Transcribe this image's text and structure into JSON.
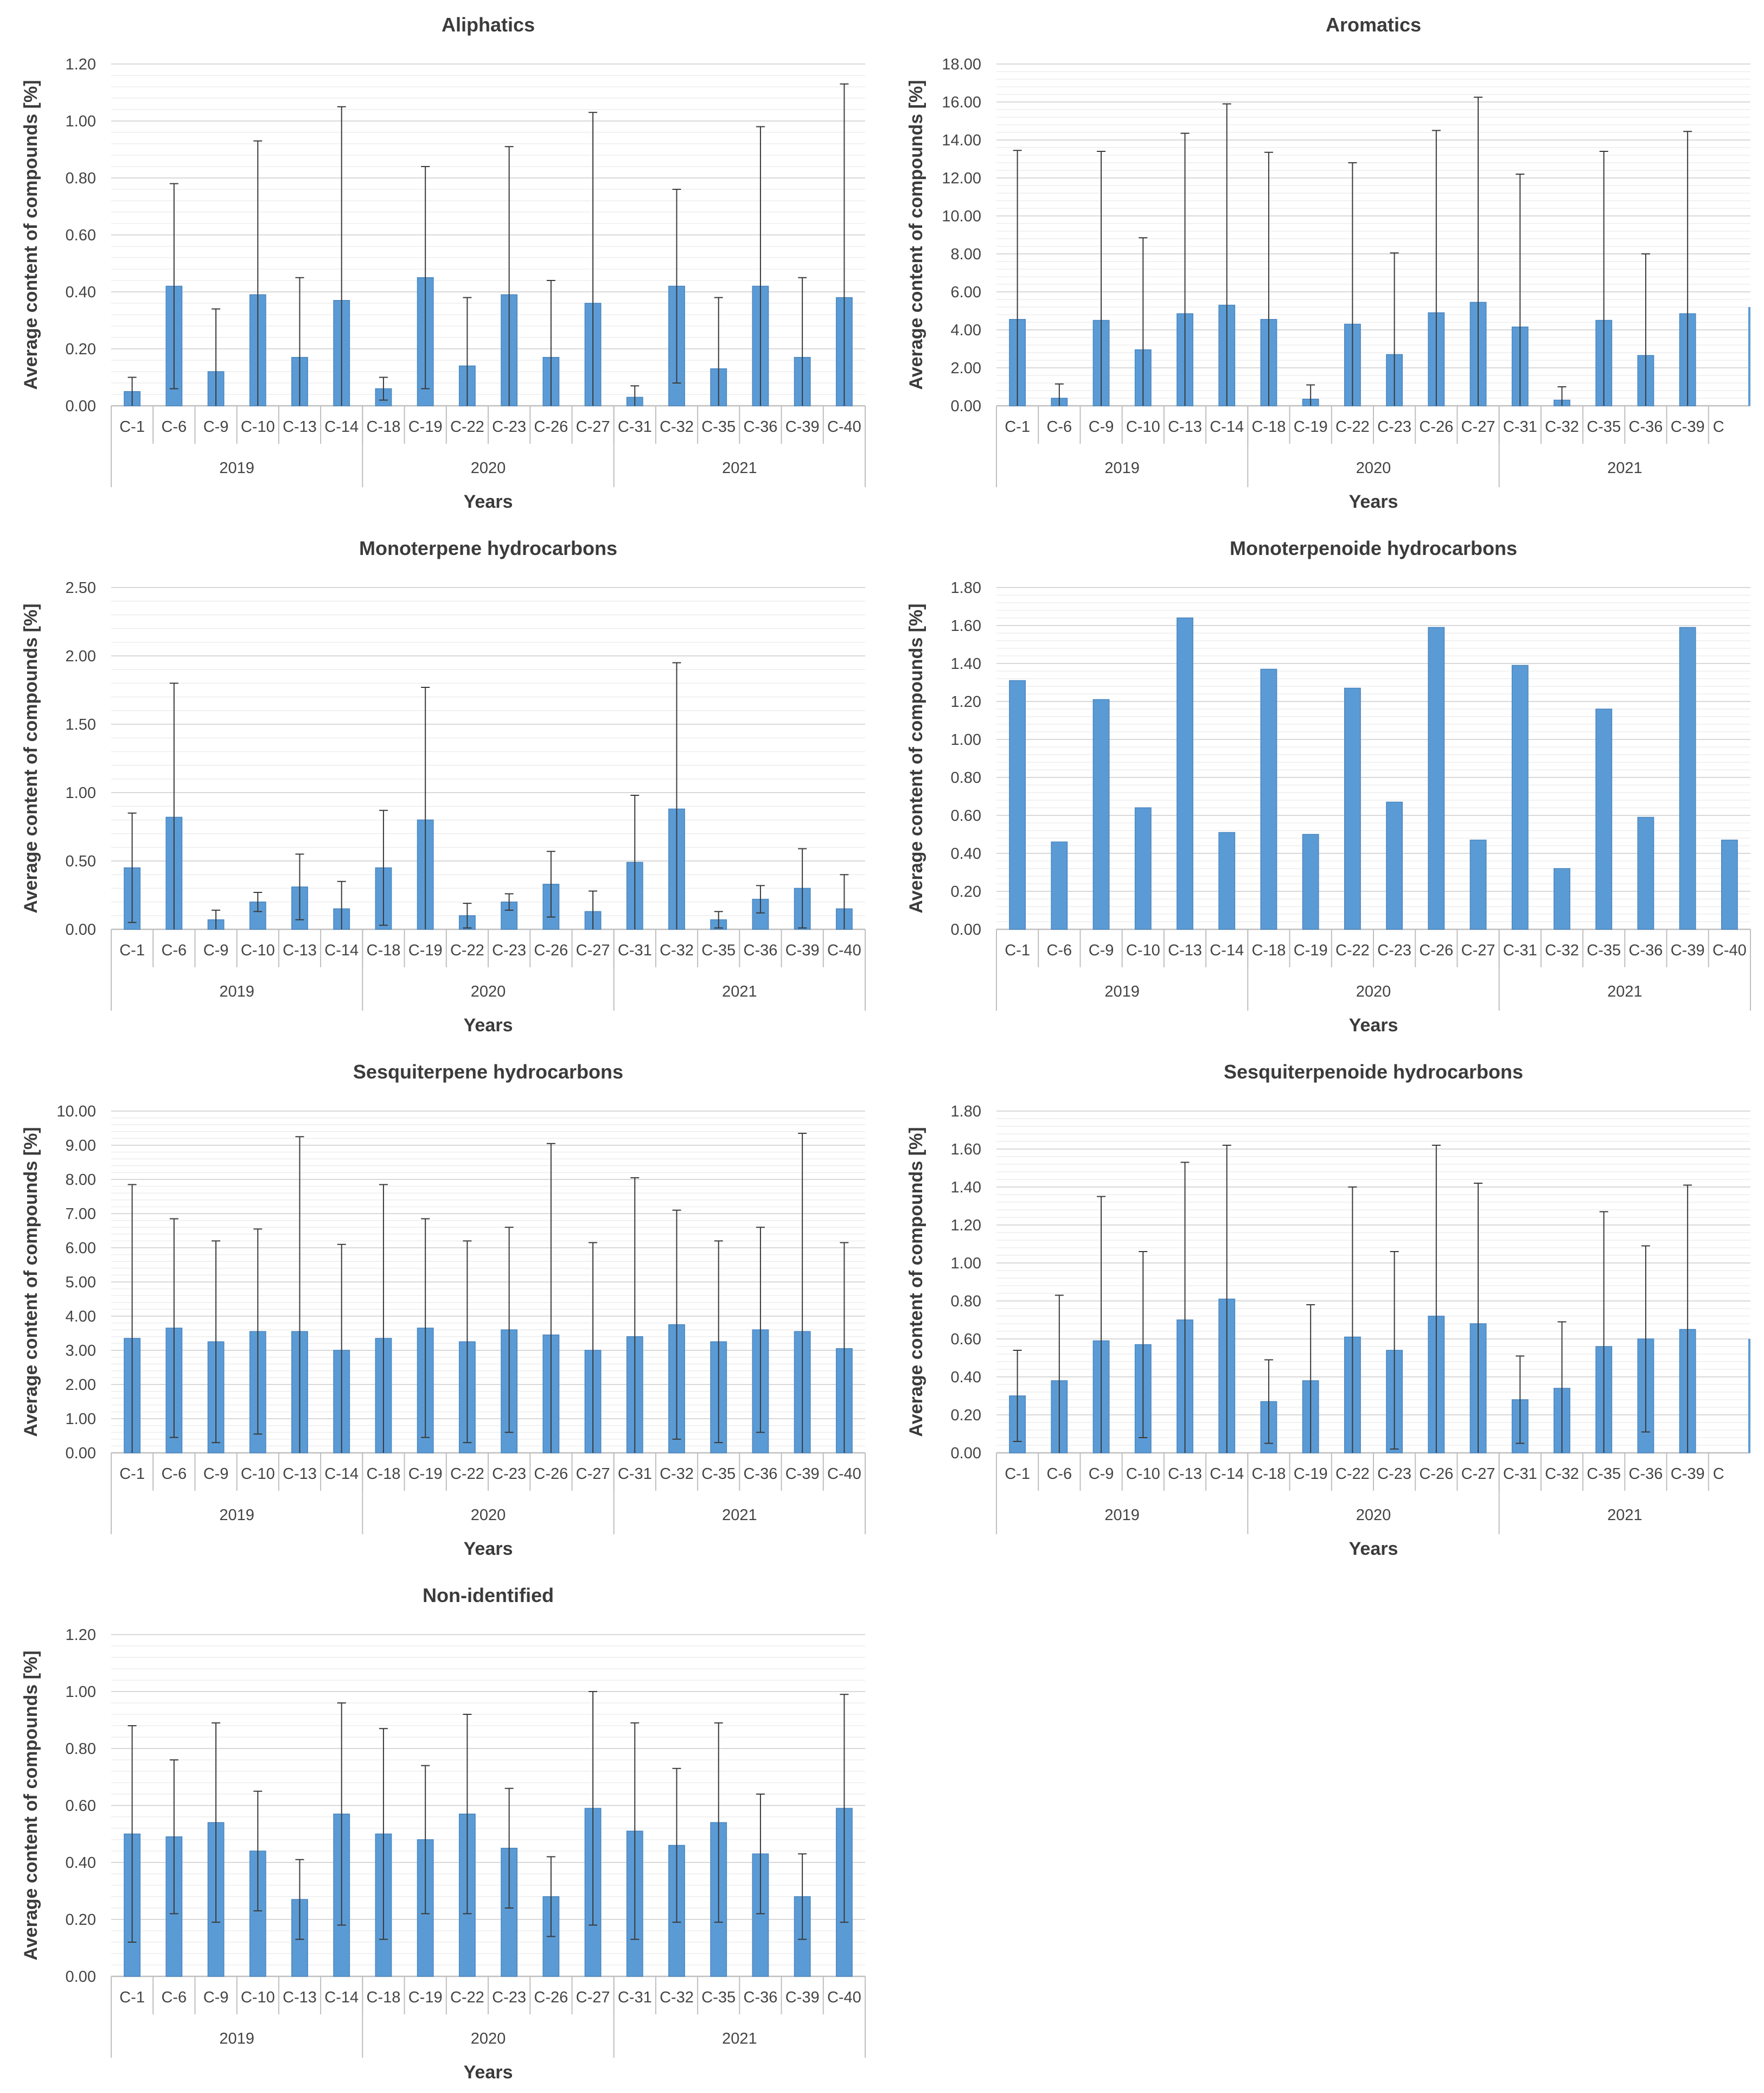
{
  "colors": {
    "bar": "#5b9bd5",
    "bar_edge": "#4a86bf",
    "error": "#3a3a3a",
    "grid": "#d9d9d9",
    "axis": "#bfbfbf"
  },
  "chart_data": [
    {
      "type": "bar",
      "title": "Aliphatics",
      "xlabel": "Years",
      "ylabel": "Average content of compounds  [%]",
      "ylim": [
        0,
        1.2
      ],
      "yticks": [
        "0.00",
        "0.20",
        "0.40",
        "0.60",
        "0.80",
        "1.00",
        "1.20"
      ],
      "categories": [
        "C-1",
        "C-6",
        "C-9",
        "C-10",
        "C-13",
        "C-14",
        "C-18",
        "C-19",
        "C-22",
        "C-23",
        "C-26",
        "C-27",
        "C-31",
        "C-32",
        "C-35",
        "C-36",
        "C-39",
        "C-40"
      ],
      "groups": [
        {
          "label": "2019",
          "count": 6
        },
        {
          "label": "2020",
          "count": 6
        },
        {
          "label": "2021",
          "count": 6
        }
      ],
      "values": [
        0.05,
        0.42,
        0.12,
        0.39,
        0.17,
        0.37,
        0.06,
        0.45,
        0.14,
        0.39,
        0.17,
        0.36,
        0.03,
        0.42,
        0.13,
        0.42,
        0.17,
        0.38
      ],
      "errors": [
        0.05,
        0.36,
        0.22,
        0.54,
        0.28,
        0.68,
        0.04,
        0.39,
        0.24,
        0.52,
        0.27,
        0.67,
        0.04,
        0.34,
        0.25,
        0.56,
        0.28,
        0.75
      ],
      "visible_count": 18
    },
    {
      "type": "bar",
      "title": "Aromatics",
      "xlabel": "Years",
      "ylabel": "Average content of compounds  [%]",
      "ylim": [
        0,
        18
      ],
      "yticks": [
        "0.00",
        "2.00",
        "4.00",
        "6.00",
        "8.00",
        "10.00",
        "12.00",
        "14.00",
        "16.00",
        "18.00"
      ],
      "categories": [
        "C-1",
        "C-6",
        "C-9",
        "C-10",
        "C-13",
        "C-14",
        "C-18",
        "C-19",
        "C-22",
        "C-23",
        "C-26",
        "C-27",
        "C-31",
        "C-32",
        "C-35",
        "C-36",
        "C-39",
        "C"
      ],
      "groups": [
        {
          "label": "2019",
          "count": 6
        },
        {
          "label": "2020",
          "count": 6
        },
        {
          "label": "2021",
          "count": 6
        }
      ],
      "values": [
        4.55,
        0.4,
        4.5,
        2.95,
        4.85,
        5.3,
        4.55,
        0.35,
        4.3,
        2.7,
        4.9,
        5.45,
        4.15,
        0.3,
        4.5,
        2.65,
        4.85,
        5.2
      ],
      "errors": [
        8.9,
        0.75,
        8.9,
        5.9,
        9.5,
        10.6,
        8.8,
        0.75,
        8.5,
        5.35,
        9.6,
        10.8,
        8.05,
        0.7,
        8.9,
        5.35,
        9.6,
        0
      ],
      "visible_count": 17
    },
    {
      "type": "bar",
      "title": "Monoterpene hydrocarbons",
      "xlabel": "Years",
      "ylabel": "Average content of compounds  [%]",
      "ylim": [
        0,
        2.5
      ],
      "yticks": [
        "0.00",
        "0.50",
        "1.00",
        "1.50",
        "2.00",
        "2.50"
      ],
      "categories": [
        "C-1",
        "C-6",
        "C-9",
        "C-10",
        "C-13",
        "C-14",
        "C-18",
        "C-19",
        "C-22",
        "C-23",
        "C-26",
        "C-27",
        "C-31",
        "C-32",
        "C-35",
        "C-36",
        "C-39",
        "C-40"
      ],
      "groups": [
        {
          "label": "2019",
          "count": 6
        },
        {
          "label": "2020",
          "count": 6
        },
        {
          "label": "2021",
          "count": 6
        }
      ],
      "values": [
        0.45,
        0.82,
        0.07,
        0.2,
        0.31,
        0.15,
        0.45,
        0.8,
        0.1,
        0.2,
        0.33,
        0.13,
        0.49,
        0.88,
        0.07,
        0.22,
        0.3,
        0.15
      ],
      "errors": [
        0.4,
        0.98,
        0.07,
        0.07,
        0.24,
        0.2,
        0.42,
        0.97,
        0.09,
        0.06,
        0.24,
        0.15,
        0.49,
        1.07,
        0.06,
        0.1,
        0.29,
        0.25
      ],
      "visible_count": 18
    },
    {
      "type": "bar",
      "title": "Monoterpenoide hydrocarbons",
      "xlabel": "Years",
      "ylabel": "Average content of compounds  [%]",
      "ylim": [
        0,
        1.8
      ],
      "yticks": [
        "0.00",
        "0.20",
        "0.40",
        "0.60",
        "0.80",
        "1.00",
        "1.20",
        "1.40",
        "1.60",
        "1.80"
      ],
      "categories": [
        "C-1",
        "C-6",
        "C-9",
        "C-10",
        "C-13",
        "C-14",
        "C-18",
        "C-19",
        "C-22",
        "C-23",
        "C-26",
        "C-27",
        "C-31",
        "C-32",
        "C-35",
        "C-36",
        "C-39",
        "C-40"
      ],
      "groups": [
        {
          "label": "2019",
          "count": 6
        },
        {
          "label": "2020",
          "count": 6
        },
        {
          "label": "2021",
          "count": 6
        }
      ],
      "values": [
        1.31,
        0.46,
        1.21,
        0.64,
        1.64,
        0.51,
        1.37,
        0.5,
        1.27,
        0.67,
        1.59,
        0.47,
        1.39,
        0.32,
        1.16,
        0.59,
        1.59,
        0.47
      ],
      "errors": [
        0,
        0,
        0,
        0,
        0,
        0,
        0,
        0,
        0,
        0,
        0,
        0,
        0,
        0,
        0,
        0,
        0,
        0
      ],
      "visible_count": 18
    },
    {
      "type": "bar",
      "title": "Sesquiterpene hydrocarbons",
      "xlabel": "Years",
      "ylabel": "Average content of compounds  [%]",
      "ylim": [
        0,
        10
      ],
      "yticks": [
        "0.00",
        "1.00",
        "2.00",
        "3.00",
        "4.00",
        "5.00",
        "6.00",
        "7.00",
        "8.00",
        "9.00",
        "10.00"
      ],
      "categories": [
        "C-1",
        "C-6",
        "C-9",
        "C-10",
        "C-13",
        "C-14",
        "C-18",
        "C-19",
        "C-22",
        "C-23",
        "C-26",
        "C-27",
        "C-31",
        "C-32",
        "C-35",
        "C-36",
        "C-39",
        "C-40"
      ],
      "groups": [
        {
          "label": "2019",
          "count": 6
        },
        {
          "label": "2020",
          "count": 6
        },
        {
          "label": "2021",
          "count": 6
        }
      ],
      "values": [
        3.35,
        3.65,
        3.25,
        3.55,
        3.55,
        3.0,
        3.35,
        3.65,
        3.25,
        3.6,
        3.45,
        3.0,
        3.4,
        3.75,
        3.25,
        3.6,
        3.55,
        3.05
      ],
      "errors": [
        4.5,
        3.2,
        2.95,
        3.0,
        5.7,
        3.1,
        4.5,
        3.2,
        2.95,
        3.0,
        5.6,
        3.15,
        4.65,
        3.35,
        2.95,
        3.0,
        5.8,
        3.1
      ],
      "visible_count": 18
    },
    {
      "type": "bar",
      "title": "Sesquiterpenoide hydrocarbons",
      "xlabel": "Years",
      "ylabel": "Average content of compounds  [%]",
      "ylim": [
        0,
        1.8
      ],
      "yticks": [
        "0.00",
        "0.20",
        "0.40",
        "0.60",
        "0.80",
        "1.00",
        "1.20",
        "1.40",
        "1.60",
        "1.80"
      ],
      "categories": [
        "C-1",
        "C-6",
        "C-9",
        "C-10",
        "C-13",
        "C-14",
        "C-18",
        "C-19",
        "C-22",
        "C-23",
        "C-26",
        "C-27",
        "C-31",
        "C-32",
        "C-35",
        "C-36",
        "C-39",
        "C"
      ],
      "groups": [
        {
          "label": "2019",
          "count": 6
        },
        {
          "label": "2020",
          "count": 6
        },
        {
          "label": "2021",
          "count": 6
        }
      ],
      "values": [
        0.3,
        0.38,
        0.59,
        0.57,
        0.7,
        0.81,
        0.27,
        0.38,
        0.61,
        0.54,
        0.72,
        0.68,
        0.28,
        0.34,
        0.56,
        0.6,
        0.65,
        0.6
      ],
      "errors": [
        0.24,
        0.45,
        0.76,
        0.49,
        0.83,
        0.81,
        0.22,
        0.4,
        0.79,
        0.52,
        0.9,
        0.74,
        0.23,
        0.35,
        0.71,
        0.49,
        0.76,
        0
      ],
      "visible_count": 17
    },
    {
      "type": "bar",
      "title": "Non-identified",
      "xlabel": "Years",
      "ylabel": "Average content of compounds  [%]",
      "ylim": [
        0,
        1.2
      ],
      "yticks": [
        "0.00",
        "0.20",
        "0.40",
        "0.60",
        "0.80",
        "1.00",
        "1.20"
      ],
      "categories": [
        "C-1",
        "C-6",
        "C-9",
        "C-10",
        "C-13",
        "C-14",
        "C-18",
        "C-19",
        "C-22",
        "C-23",
        "C-26",
        "C-27",
        "C-31",
        "C-32",
        "C-35",
        "C-36",
        "C-39",
        "C-40"
      ],
      "groups": [
        {
          "label": "2019",
          "count": 6
        },
        {
          "label": "2020",
          "count": 6
        },
        {
          "label": "2021",
          "count": 6
        }
      ],
      "values": [
        0.5,
        0.49,
        0.54,
        0.44,
        0.27,
        0.57,
        0.5,
        0.48,
        0.57,
        0.45,
        0.28,
        0.59,
        0.51,
        0.46,
        0.54,
        0.43,
        0.28,
        0.59
      ],
      "errors": [
        0.38,
        0.27,
        0.35,
        0.21,
        0.14,
        0.39,
        0.37,
        0.26,
        0.35,
        0.21,
        0.14,
        0.41,
        0.38,
        0.27,
        0.35,
        0.21,
        0.15,
        0.4
      ],
      "visible_count": 18
    }
  ]
}
